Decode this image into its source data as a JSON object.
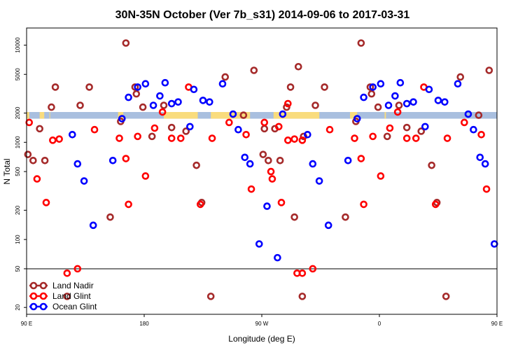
{
  "chart_data": {
    "type": "scatter",
    "title": "30N-35N October (Ver 7b_s31)   2014-09-06 to 2017-03-31",
    "xlabel": "Longitude (deg E)",
    "ylabel": "N Total",
    "xlim": [
      90,
      450
    ],
    "ylim": [
      17,
      15000
    ],
    "yscale": "log",
    "x_ticks": [
      {
        "value": 90,
        "label": "90 E"
      },
      {
        "value": 180,
        "label": "180"
      },
      {
        "value": 270,
        "label": "90 W"
      },
      {
        "value": 360,
        "label": "0"
      },
      {
        "value": 450,
        "label": "90 E"
      },
      {
        "value": 540,
        "label": "180"
      }
    ],
    "y_ticks": [
      {
        "value": 20,
        "label": "20"
      },
      {
        "value": 50,
        "label": "50"
      },
      {
        "value": 100,
        "label": "100"
      },
      {
        "value": 200,
        "label": "200"
      },
      {
        "value": 500,
        "label": "500"
      },
      {
        "value": 1000,
        "label": "1000"
      },
      {
        "value": 2000,
        "label": "2000"
      },
      {
        "value": 5000,
        "label": "5000"
      },
      {
        "value": 10000,
        "label": "10000"
      }
    ],
    "reference_line": 50,
    "band": {
      "ylow": 1750,
      "yhigh": 2050
    },
    "legend_position": "bottom-left",
    "series": [
      {
        "name": "Land Nadir",
        "color": "#a52a2a",
        "points": [
          [
            91,
            750
          ],
          [
            95,
            650
          ],
          [
            100,
            1380
          ],
          [
            104,
            650
          ],
          [
            109,
            2300
          ],
          [
            112,
            3700
          ],
          [
            121,
            26
          ],
          [
            131,
            2400
          ],
          [
            138,
            3700
          ],
          [
            154,
            170
          ],
          [
            162,
            1640
          ],
          [
            166,
            10500
          ],
          [
            173,
            3700
          ],
          [
            174,
            3150
          ],
          [
            179,
            2300
          ],
          [
            186,
            1150
          ],
          [
            195,
            2400
          ],
          [
            201,
            1420
          ],
          [
            212,
            1300
          ],
          [
            220,
            580
          ],
          [
            224,
            240
          ],
          [
            231,
            26
          ],
          [
            242,
            4700
          ],
          [
            256,
            1900
          ],
          [
            264,
            5500
          ],
          [
            272,
            1380
          ],
          [
            295,
            170
          ],
          [
            298,
            6000
          ],
          [
            302,
            1150
          ]
        ]
      },
      {
        "name": "Land Glint",
        "color": "#ff0000",
        "points": [
          [
            92,
            1600
          ],
          [
            98,
            420
          ],
          [
            105,
            240
          ],
          [
            110,
            1050
          ],
          [
            115,
            1080
          ],
          [
            121,
            45
          ],
          [
            129,
            50
          ],
          [
            142,
            1350
          ],
          [
            161,
            1100
          ],
          [
            166,
            680
          ],
          [
            168,
            230
          ],
          [
            175,
            1150
          ],
          [
            181,
            450
          ],
          [
            188,
            1400
          ],
          [
            194,
            2050
          ],
          [
            201,
            1100
          ],
          [
            208,
            1100
          ],
          [
            214,
            3700
          ],
          [
            223,
            230
          ],
          [
            232,
            1100
          ],
          [
            245,
            1600
          ],
          [
            258,
            1200
          ],
          [
            262,
            330
          ],
          [
            277,
            500
          ],
          [
            283,
            1450
          ],
          [
            290,
            2500
          ],
          [
            297,
            45
          ],
          [
            301,
            1050
          ]
        ]
      },
      {
        "name": "Ocean Glint",
        "color": "#0000ff",
        "points": [
          [
            125,
            1200
          ],
          [
            129,
            600
          ],
          [
            134,
            400
          ],
          [
            141,
            140
          ],
          [
            156,
            650
          ],
          [
            163,
            1750
          ],
          [
            168,
            2900
          ],
          [
            175,
            3700
          ],
          [
            181,
            4000
          ],
          [
            187,
            2400
          ],
          [
            192,
            3000
          ],
          [
            196,
            4100
          ],
          [
            201,
            2500
          ],
          [
            206,
            2600
          ],
          [
            215,
            1450
          ],
          [
            218,
            3500
          ],
          [
            225,
            2700
          ],
          [
            230,
            2600
          ],
          [
            240,
            4000
          ],
          [
            248,
            1950
          ],
          [
            252,
            1350
          ],
          [
            257,
            700
          ],
          [
            261,
            600
          ],
          [
            268,
            90
          ],
          [
            274,
            220
          ],
          [
            282,
            65
          ],
          [
            286,
            1950
          ]
        ]
      }
    ]
  }
}
